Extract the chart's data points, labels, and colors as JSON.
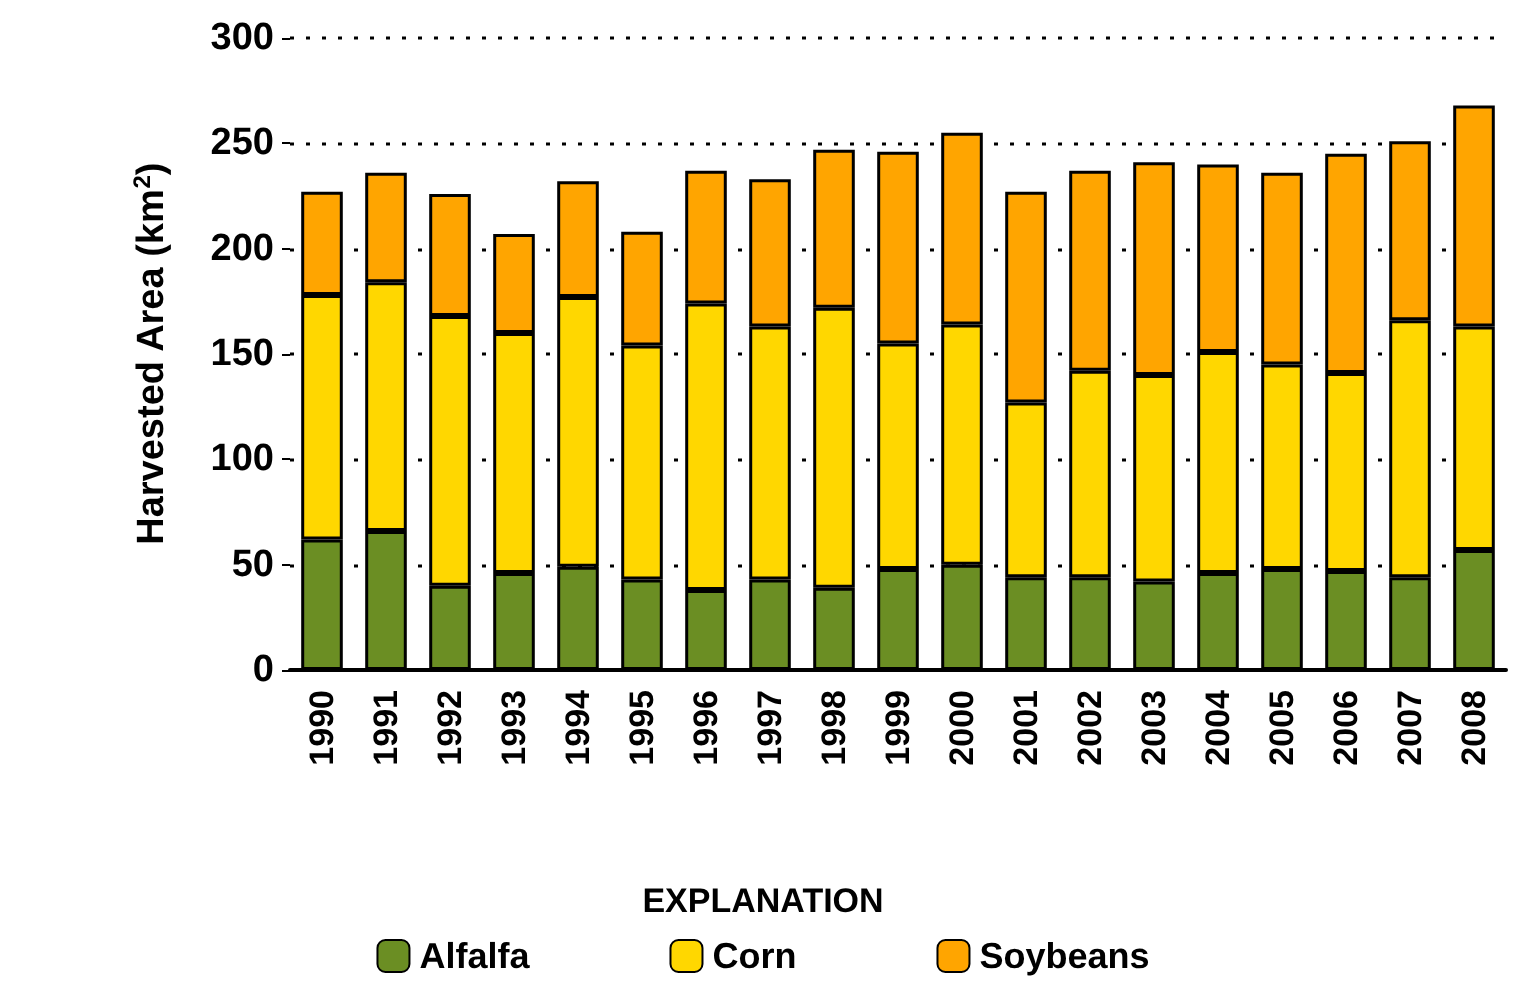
{
  "chart_data": {
    "type": "bar",
    "stacked": true,
    "ylabel": "Harvested Area (km$^{2}$)",
    "legend_title": "EXPLANATION",
    "categories": [
      "1990",
      "1991",
      "1992",
      "1993",
      "1994",
      "1995",
      "1996",
      "1997",
      "1998",
      "1999",
      "2000",
      "2001",
      "2002",
      "2003",
      "2004",
      "2005",
      "2006",
      "2007",
      "2008"
    ],
    "series": [
      {
        "name": "Alfalfa",
        "color": "#6b8e23",
        "values": [
          62,
          66,
          40,
          46,
          49,
          43,
          38,
          43,
          39,
          48,
          50,
          44,
          44,
          42,
          46,
          48,
          47,
          44,
          57
        ]
      },
      {
        "name": "Corn",
        "color": "#ffd700",
        "values": [
          116,
          118,
          128,
          114,
          128,
          111,
          136,
          120,
          133,
          107,
          114,
          83,
          98,
          98,
          105,
          97,
          94,
          122,
          106
        ]
      },
      {
        "name": "Soybeans",
        "color": "#ffa500",
        "values": [
          49,
          52,
          58,
          47,
          55,
          54,
          63,
          70,
          75,
          91,
          91,
          100,
          95,
          101,
          89,
          91,
          104,
          85,
          105
        ]
      }
    ],
    "ylim": [
      0,
      300
    ],
    "yticks": [
      0,
      50,
      100,
      150,
      200,
      250,
      300
    ],
    "grid": "y",
    "legend": "bottom"
  }
}
